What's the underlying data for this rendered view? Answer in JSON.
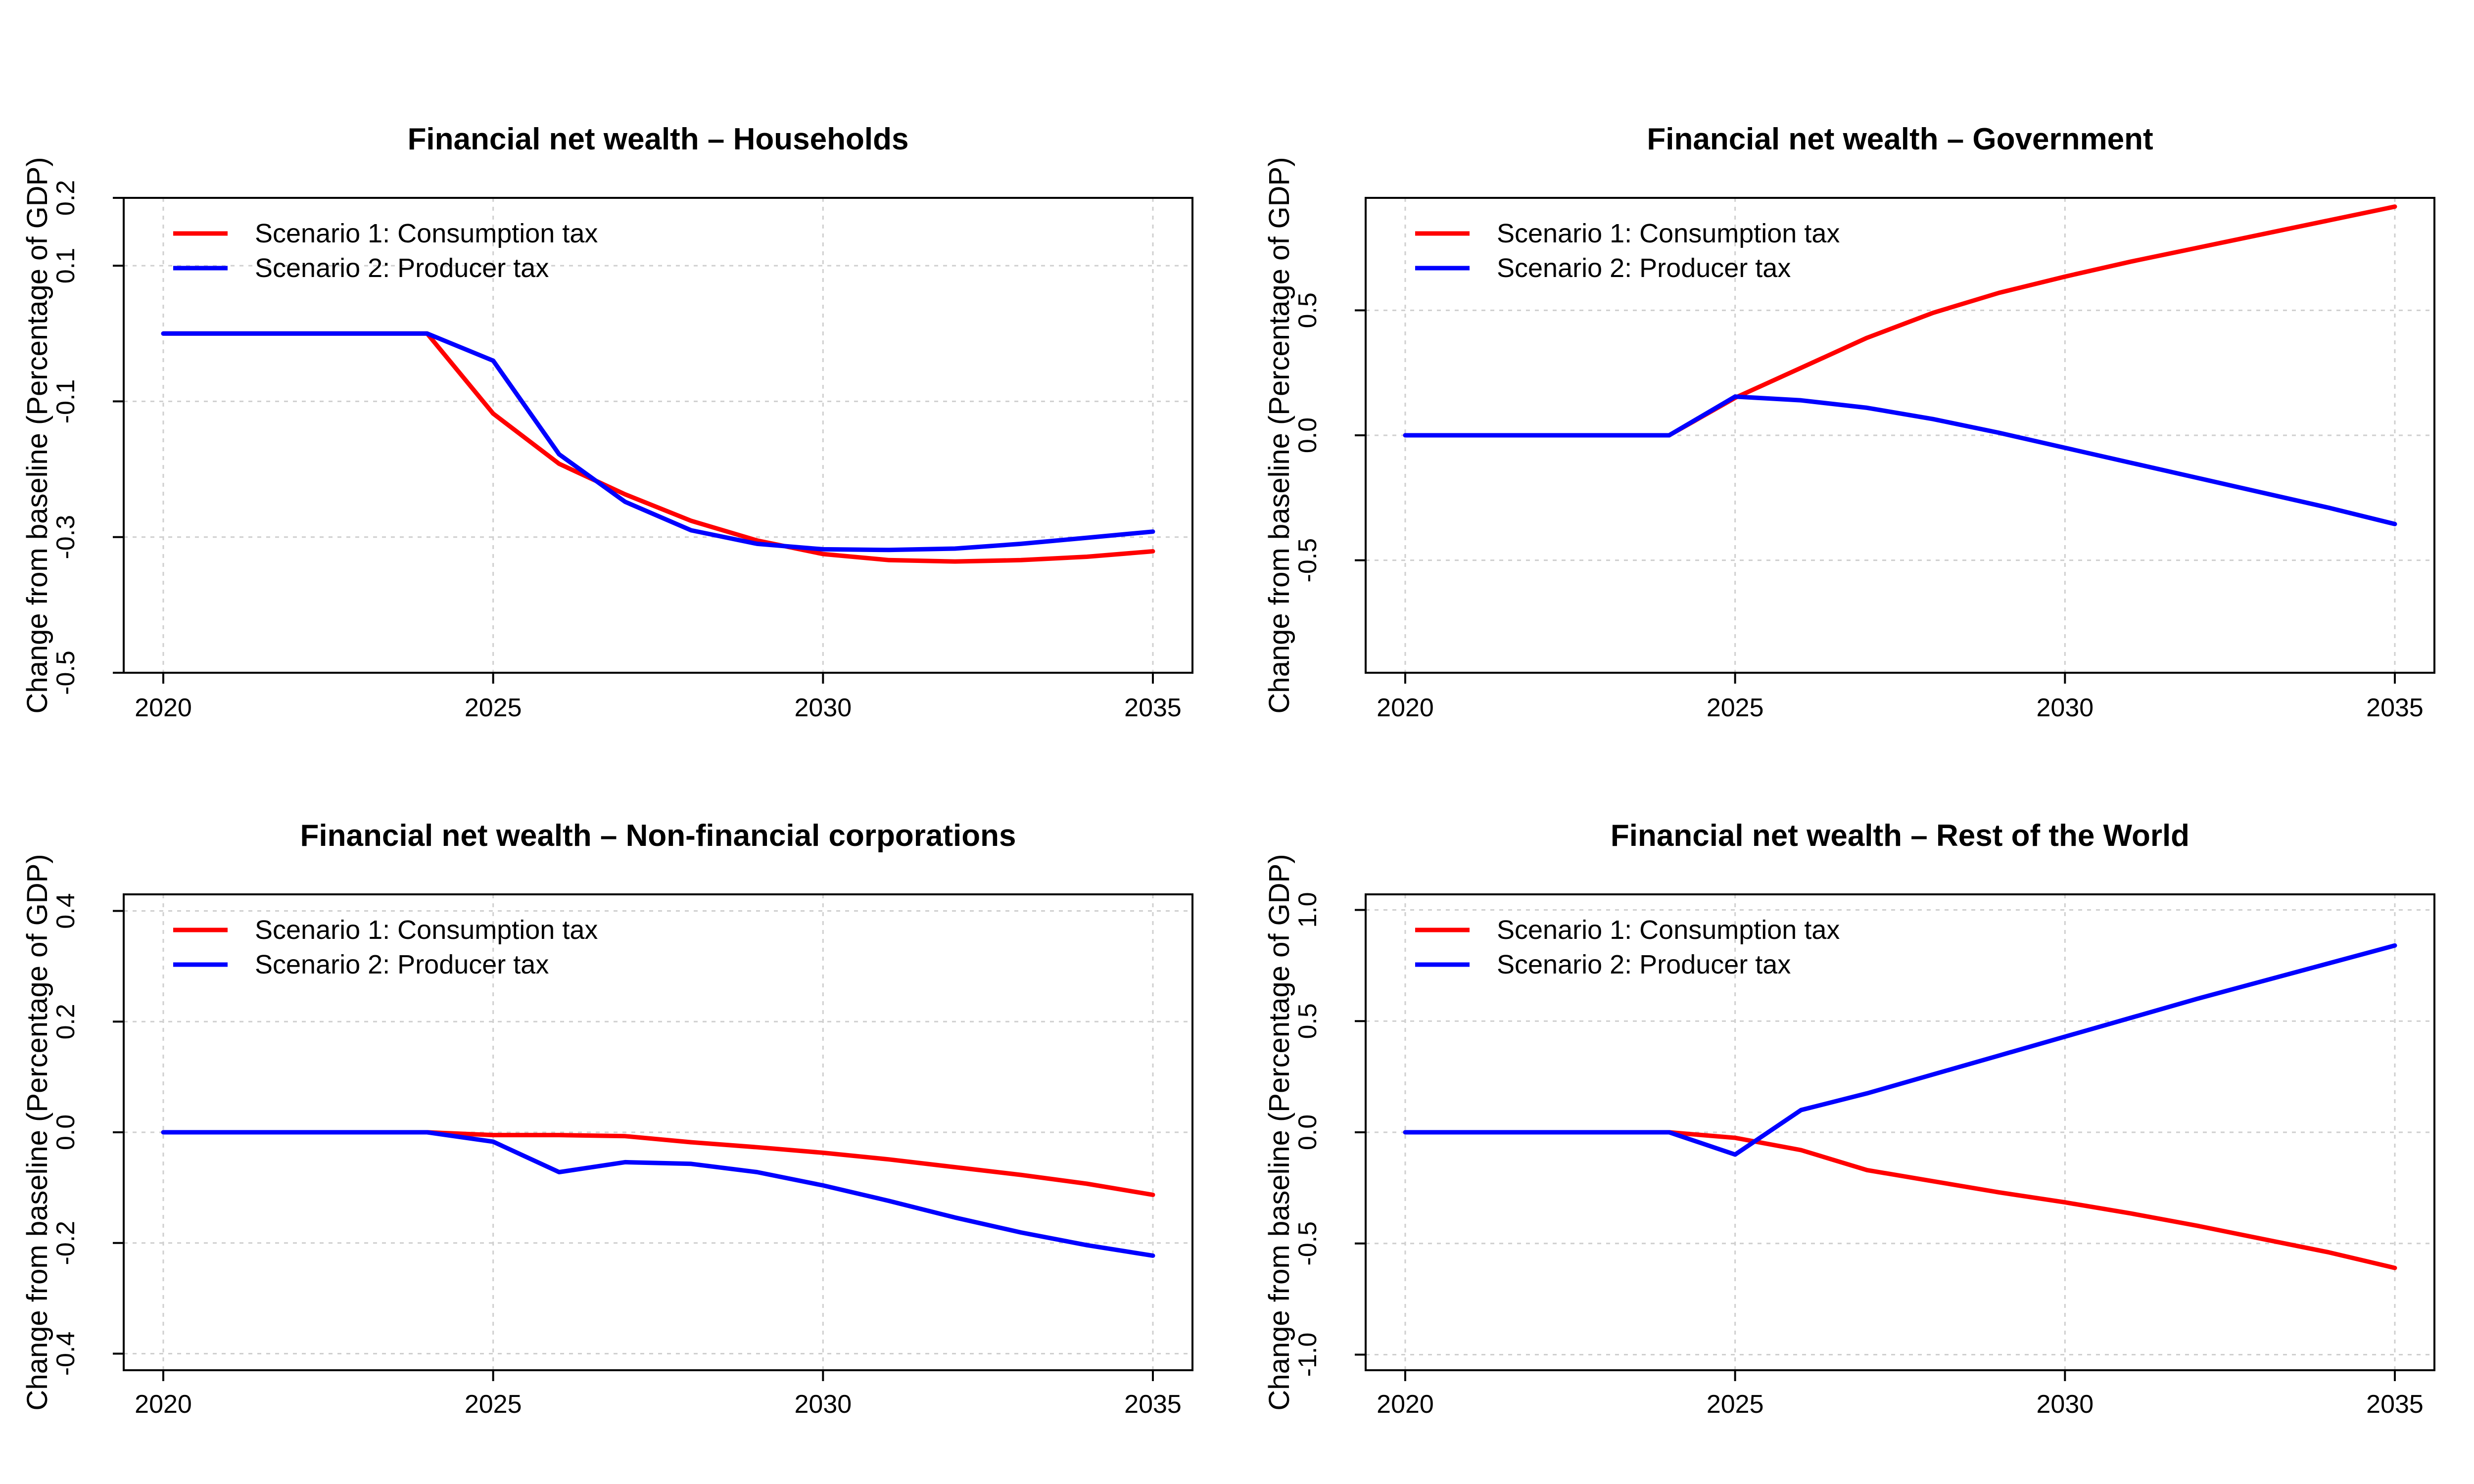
{
  "chart_data": [
    {
      "type": "line",
      "title": "Financial net wealth – Households",
      "ylabel": "Change from baseline (Percentage of GDP)",
      "xlabel": "",
      "x": [
        2020,
        2021,
        2022,
        2023,
        2024,
        2025,
        2026,
        2027,
        2028,
        2029,
        2030,
        2031,
        2032,
        2033,
        2034,
        2035
      ],
      "xlim": [
        2020,
        2035
      ],
      "ylim": [
        -0.5,
        0.2
      ],
      "xticks": [
        "2020",
        "2025",
        "2030",
        "2035"
      ],
      "yticks": [
        "-0.5",
        "-0.3",
        "-0.1",
        "0.1",
        "0.2"
      ],
      "grid": true,
      "legend": "top-left",
      "series": [
        {
          "name": "Scenario 1: Consumption tax",
          "color": "#ff0000",
          "values": [
            0,
            0,
            0,
            0,
            0,
            -0.118,
            -0.192,
            -0.237,
            -0.276,
            -0.305,
            -0.325,
            -0.334,
            -0.336,
            -0.334,
            -0.329,
            -0.321
          ]
        },
        {
          "name": "Scenario 2: Producer tax",
          "color": "#0000ff",
          "values": [
            0,
            0,
            0,
            0,
            0,
            -0.04,
            -0.178,
            -0.248,
            -0.29,
            -0.31,
            -0.318,
            -0.319,
            -0.317,
            -0.31,
            -0.301,
            -0.292
          ]
        }
      ]
    },
    {
      "type": "line",
      "title": "Financial net wealth – Government",
      "ylabel": "Change from baseline (Percentage of GDP)",
      "xlabel": "",
      "x": [
        2020,
        2021,
        2022,
        2023,
        2024,
        2025,
        2026,
        2027,
        2028,
        2029,
        2030,
        2031,
        2032,
        2033,
        2034,
        2035
      ],
      "xlim": [
        2020,
        2035
      ],
      "ylim": [
        -0.95,
        0.95
      ],
      "xticks": [
        "2020",
        "2025",
        "2030",
        "2035"
      ],
      "yticks": [
        "-0.5",
        "0.0",
        "0.5"
      ],
      "grid": true,
      "legend": "top-left",
      "series": [
        {
          "name": "Scenario 1: Consumption tax",
          "color": "#ff0000",
          "values": [
            0,
            0,
            0,
            0,
            0,
            0.15,
            0.27,
            0.39,
            0.49,
            0.57,
            0.635,
            0.695,
            0.75,
            0.805,
            0.86,
            0.915
          ]
        },
        {
          "name": "Scenario 2: Producer tax",
          "color": "#0000ff",
          "values": [
            0,
            0,
            0,
            0,
            0,
            0.155,
            0.14,
            0.11,
            0.065,
            0.01,
            -0.05,
            -0.11,
            -0.17,
            -0.23,
            -0.29,
            -0.355
          ]
        }
      ]
    },
    {
      "type": "line",
      "title": "Financial net wealth – Non-financial corporations",
      "ylabel": "Change from baseline (Percentage of GDP)",
      "xlabel": "",
      "x": [
        2020,
        2021,
        2022,
        2023,
        2024,
        2025,
        2026,
        2027,
        2028,
        2029,
        2030,
        2031,
        2032,
        2033,
        2034,
        2035
      ],
      "xlim": [
        2020,
        2035
      ],
      "ylim": [
        -0.43,
        0.43
      ],
      "xticks": [
        "2020",
        "2025",
        "2030",
        "2035"
      ],
      "yticks": [
        "-0.4",
        "-0.2",
        "0.0",
        "0.2",
        "0.4"
      ],
      "grid": true,
      "legend": "top-left",
      "series": [
        {
          "name": "Scenario 1: Consumption tax",
          "color": "#ff0000",
          "values": [
            0,
            0,
            0,
            0,
            0,
            -0.005,
            -0.005,
            -0.007,
            -0.018,
            -0.027,
            -0.037,
            -0.049,
            -0.063,
            -0.077,
            -0.093,
            -0.113
          ]
        },
        {
          "name": "Scenario 2: Producer tax",
          "color": "#0000ff",
          "values": [
            0,
            0,
            0,
            0,
            0,
            -0.017,
            -0.072,
            -0.054,
            -0.057,
            -0.072,
            -0.096,
            -0.124,
            -0.154,
            -0.181,
            -0.204,
            -0.223
          ]
        }
      ]
    },
    {
      "type": "line",
      "title": "Financial net wealth – Rest of the World",
      "ylabel": "Change from baseline (Percentage of GDP)",
      "xlabel": "",
      "x": [
        2020,
        2021,
        2022,
        2023,
        2024,
        2025,
        2026,
        2027,
        2028,
        2029,
        2030,
        2031,
        2032,
        2033,
        2034,
        2035
      ],
      "xlim": [
        2020,
        2035
      ],
      "ylim": [
        -1.07,
        1.07
      ],
      "xticks": [
        "2020",
        "2025",
        "2030",
        "2035"
      ],
      "yticks": [
        "-1.0",
        "-0.5",
        "0.0",
        "0.5",
        "1.0"
      ],
      "grid": true,
      "legend": "top-left",
      "series": [
        {
          "name": "Scenario 1: Consumption tax",
          "color": "#ff0000",
          "values": [
            0,
            0,
            0,
            0,
            0,
            -0.025,
            -0.08,
            -0.17,
            -0.22,
            -0.27,
            -0.315,
            -0.365,
            -0.42,
            -0.48,
            -0.54,
            -0.61
          ]
        },
        {
          "name": "Scenario 2: Producer tax",
          "color": "#0000ff",
          "values": [
            0,
            0,
            0,
            0,
            0,
            -0.1,
            0.1,
            0.175,
            0.26,
            0.345,
            0.43,
            0.515,
            0.6,
            0.68,
            0.76,
            0.84
          ]
        }
      ]
    }
  ]
}
